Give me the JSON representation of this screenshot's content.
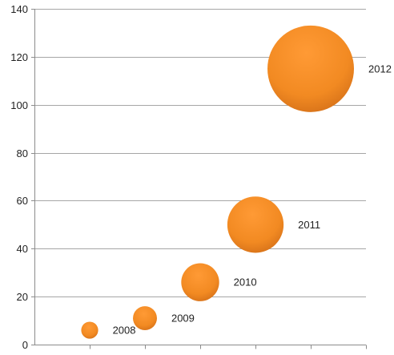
{
  "chart_data": {
    "type": "bubble",
    "title": "",
    "xlabel": "",
    "ylabel": "",
    "xlim": [
      0,
      6
    ],
    "ylim": [
      0,
      140
    ],
    "yticks": [
      0,
      20,
      40,
      60,
      80,
      100,
      120,
      140
    ],
    "grid": "horizontal",
    "legend": "none",
    "bubble_color": "#F28A22",
    "bubble_highlight": "#FF9A35",
    "points": [
      {
        "label": "2008",
        "x": 1,
        "y": 6,
        "size": 1
      },
      {
        "label": "2009",
        "x": 2,
        "y": 11,
        "size": 2
      },
      {
        "label": "2010",
        "x": 3,
        "y": 26,
        "size": 5
      },
      {
        "label": "2011",
        "x": 4,
        "y": 50,
        "size": 11
      },
      {
        "label": "2012",
        "x": 5,
        "y": 115,
        "size": 26
      }
    ]
  }
}
